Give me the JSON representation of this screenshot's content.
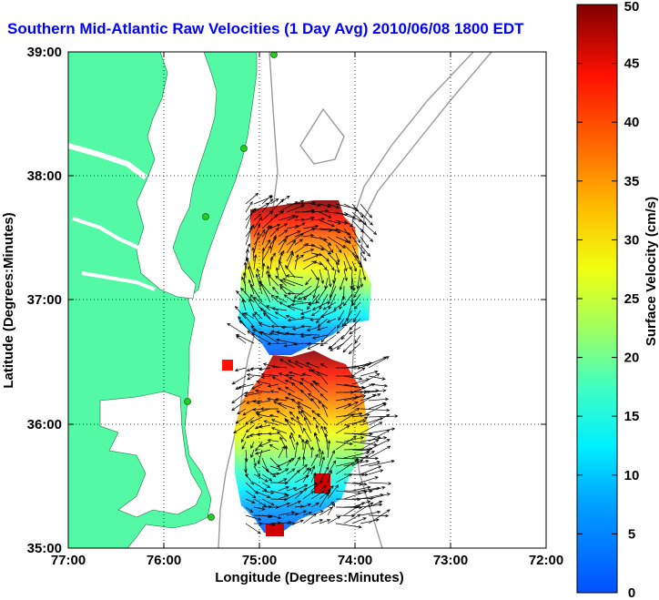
{
  "title": "Southern Mid-Atlantic Raw Velocities (1 Day Avg) 2010/06/08 1800 EDT",
  "x_axis": {
    "label": "Longitude (Degrees:Minutes)",
    "ticks": [
      "77:00",
      "76:00",
      "75:00",
      "74:00",
      "73:00",
      "72:00"
    ]
  },
  "y_axis": {
    "label": "Latitude (Degrees:Minutes)",
    "ticks": [
      "39:00",
      "38:00",
      "37:00",
      "36:00",
      "35:00"
    ]
  },
  "colorbar": {
    "label": "Surface Velocity (cm/s)",
    "ticks": [
      "0",
      "5",
      "10",
      "15",
      "20",
      "25",
      "30",
      "35",
      "40",
      "45",
      "50"
    ],
    "range": [
      0,
      50
    ],
    "colormap": "jet"
  },
  "map_extent": {
    "lon_west": 77,
    "lon_east": 72,
    "lat_south": 35,
    "lat_north": 39
  },
  "grid": true,
  "colors": {
    "land": "#54f9a6",
    "title": "#0000ff",
    "bathymetry": "#999999",
    "station": "#22cc22"
  }
}
